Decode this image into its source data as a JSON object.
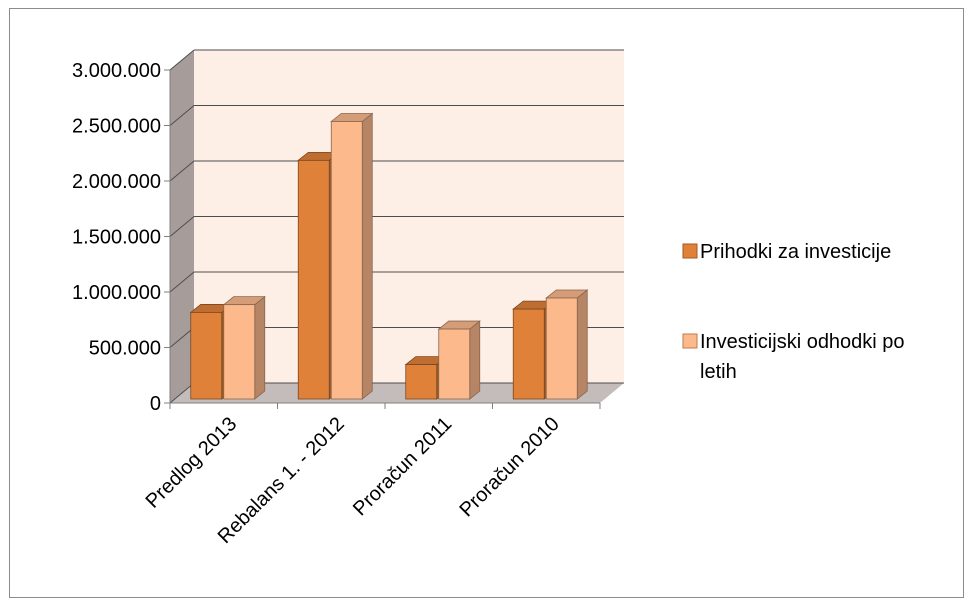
{
  "chart_data": {
    "type": "bar",
    "categories": [
      "Predlog 2013",
      "Rebalans 1. - 2012",
      "Proračun 2011",
      "Proračun 2010"
    ],
    "series": [
      {
        "name": "Prihodki za investicije",
        "values": [
          780000,
          2150000,
          310000,
          810000
        ],
        "color": "#e0813a"
      },
      {
        "name": "Investicijski odhodki po letih",
        "values": [
          850000,
          2500000,
          630000,
          910000
        ],
        "color": "#fbb98c"
      }
    ],
    "y_ticks": [
      "0",
      "500.000",
      "1.000.000",
      "1.500.000",
      "2.000.000",
      "2.500.000",
      "3.000.000"
    ],
    "ylim": [
      0,
      3000000
    ],
    "grid": true,
    "legend_position": "right",
    "colors": {
      "wall": "#fdeee6",
      "side_wall": "#a69d9b",
      "floor": "#c3bcba",
      "gridline": "#4d4d4d"
    }
  },
  "legend": {
    "item1_label": "Prihodki za investicije",
    "item2_line1": "Investicijski odhodki po",
    "item2_line2": "letih"
  }
}
